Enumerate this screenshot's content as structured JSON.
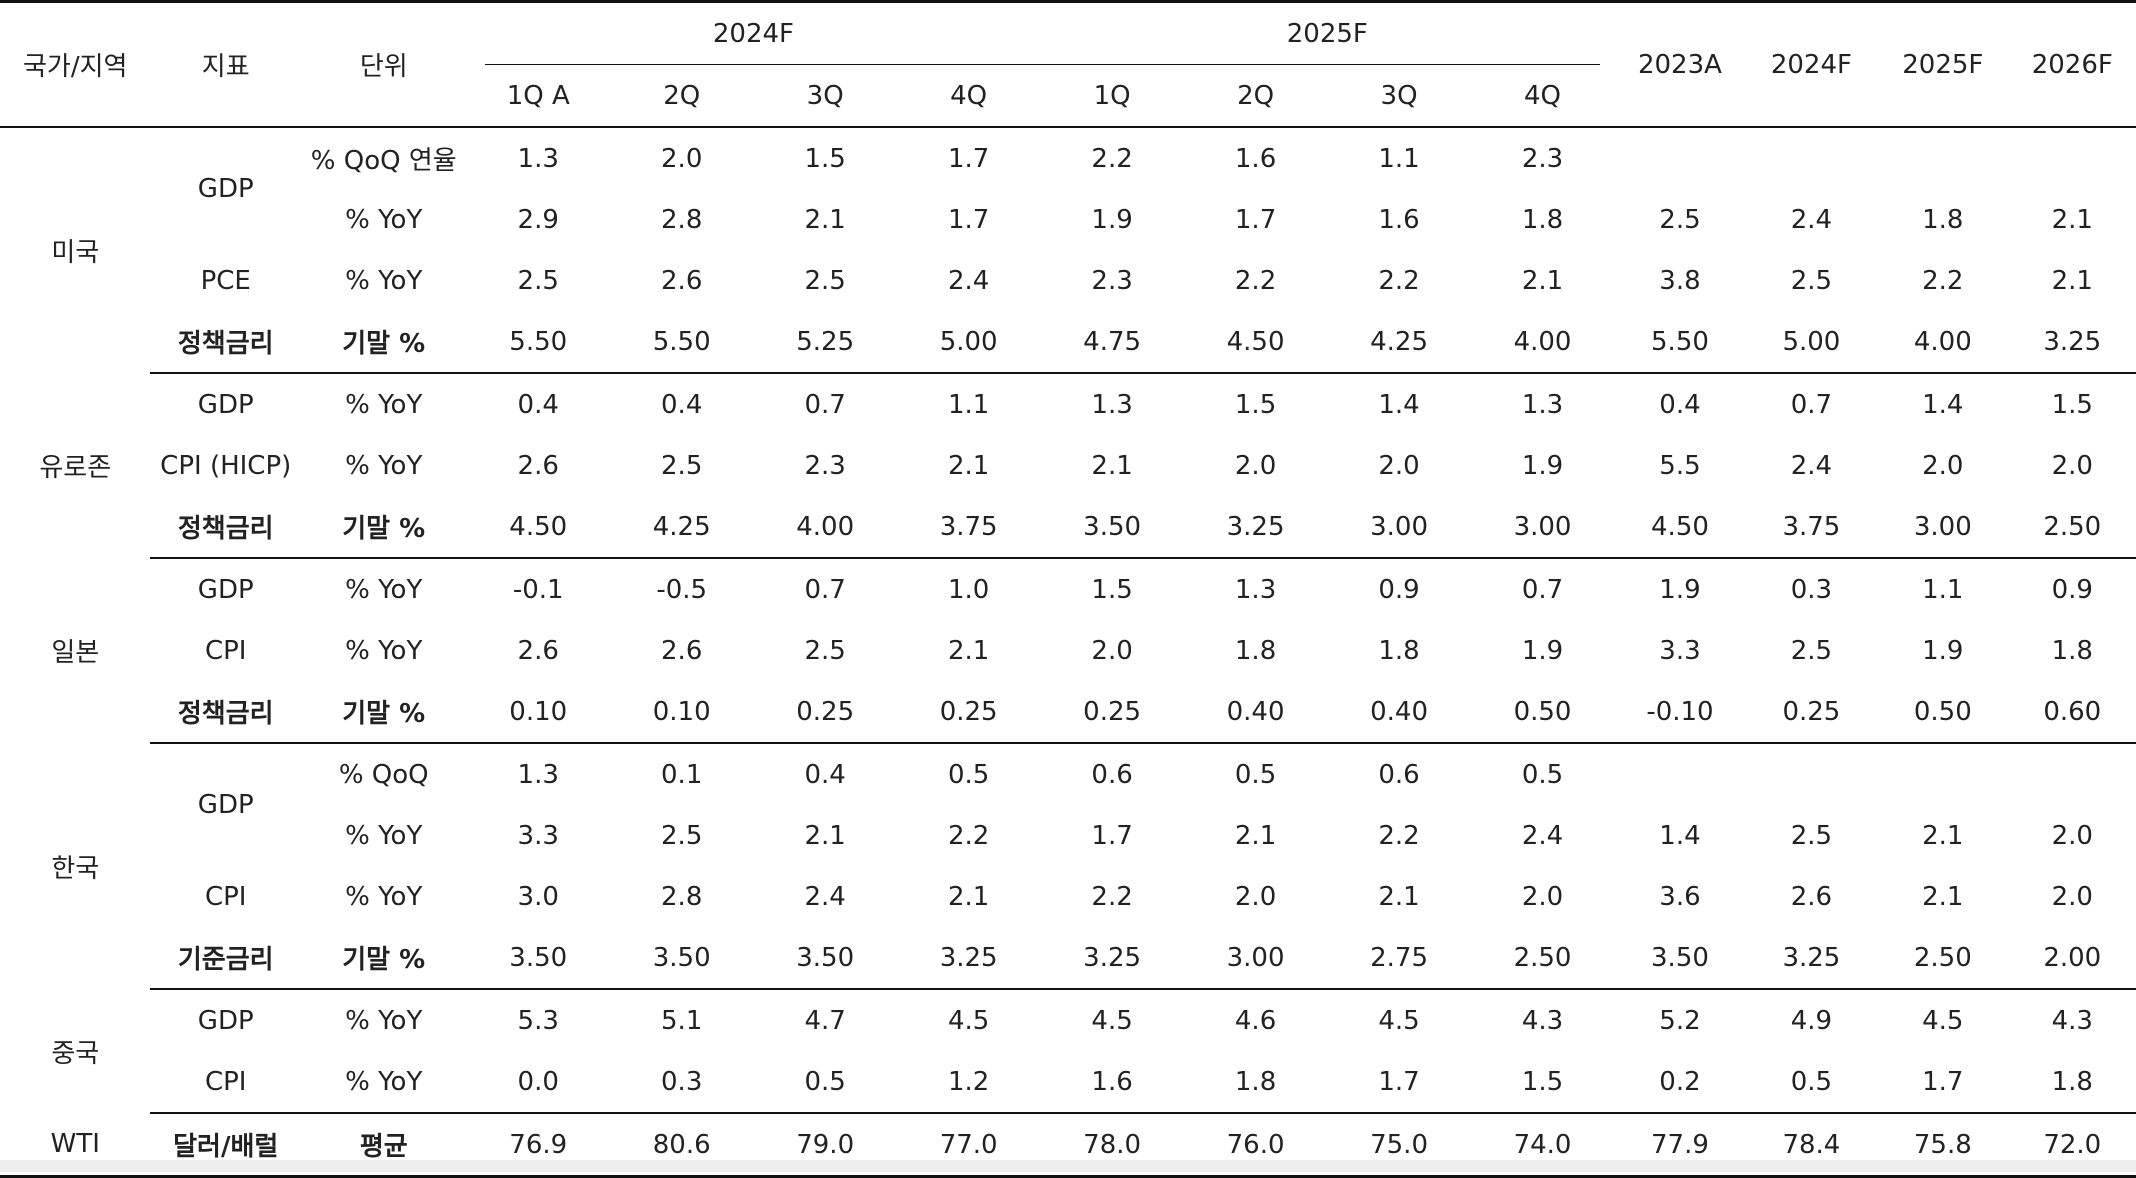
{
  "header": {
    "country": "국가/지역",
    "indicator": "지표",
    "unit": "단위",
    "year_2024f": "2024F",
    "year_2025f": "2025F",
    "quarters_2024": [
      "1Q A",
      "2Q",
      "3Q",
      "4Q"
    ],
    "quarters_2025": [
      "1Q",
      "2Q",
      "3Q",
      "4Q"
    ],
    "annual": [
      "2023A",
      "2024F",
      "2025F",
      "2026F"
    ]
  },
  "rows": [
    {
      "country": "미국",
      "indicator": "GDP",
      "unit": "% QoQ 연율",
      "q": [
        "1.3",
        "2.0",
        "1.5",
        "1.7",
        "2.2",
        "1.6",
        "1.1",
        "2.3"
      ],
      "a": [
        "",
        "",
        "",
        ""
      ],
      "bold": false
    },
    {
      "country": "",
      "indicator": "",
      "unit": "% YoY",
      "q": [
        "2.9",
        "2.8",
        "2.1",
        "1.7",
        "1.9",
        "1.7",
        "1.6",
        "1.8"
      ],
      "a": [
        "2.5",
        "2.4",
        "1.8",
        "2.1"
      ],
      "bold": false
    },
    {
      "country": "",
      "indicator": "PCE",
      "unit": "% YoY",
      "q": [
        "2.5",
        "2.6",
        "2.5",
        "2.4",
        "2.3",
        "2.2",
        "2.2",
        "2.1"
      ],
      "a": [
        "3.8",
        "2.5",
        "2.2",
        "2.1"
      ],
      "bold": false
    },
    {
      "country": "",
      "indicator": "정책금리",
      "unit": "기말 %",
      "q": [
        "5.50",
        "5.50",
        "5.25",
        "5.00",
        "4.75",
        "4.50",
        "4.25",
        "4.00"
      ],
      "a": [
        "5.50",
        "5.00",
        "4.00",
        "3.25"
      ],
      "bold": true
    },
    {
      "country": "유로존",
      "indicator": "GDP",
      "unit": "% YoY",
      "q": [
        "0.4",
        "0.4",
        "0.7",
        "1.1",
        "1.3",
        "1.5",
        "1.4",
        "1.3"
      ],
      "a": [
        "0.4",
        "0.7",
        "1.4",
        "1.5"
      ],
      "bold": false
    },
    {
      "country": "",
      "indicator": "CPI (HICP)",
      "unit": "% YoY",
      "q": [
        "2.6",
        "2.5",
        "2.3",
        "2.1",
        "2.1",
        "2.0",
        "2.0",
        "1.9"
      ],
      "a": [
        "5.5",
        "2.4",
        "2.0",
        "2.0"
      ],
      "bold": false
    },
    {
      "country": "",
      "indicator": "정책금리",
      "unit": "기말 %",
      "q": [
        "4.50",
        "4.25",
        "4.00",
        "3.75",
        "3.50",
        "3.25",
        "3.00",
        "3.00"
      ],
      "a": [
        "4.50",
        "3.75",
        "3.00",
        "2.50"
      ],
      "bold": true
    },
    {
      "country": "일본",
      "indicator": "GDP",
      "unit": "% YoY",
      "q": [
        "-0.1",
        "-0.5",
        "0.7",
        "1.0",
        "1.5",
        "1.3",
        "0.9",
        "0.7"
      ],
      "a": [
        "1.9",
        "0.3",
        "1.1",
        "0.9"
      ],
      "bold": false
    },
    {
      "country": "",
      "indicator": "CPI",
      "unit": "% YoY",
      "q": [
        "2.6",
        "2.6",
        "2.5",
        "2.1",
        "2.0",
        "1.8",
        "1.8",
        "1.9"
      ],
      "a": [
        "3.3",
        "2.5",
        "1.9",
        "1.8"
      ],
      "bold": false
    },
    {
      "country": "",
      "indicator": "정책금리",
      "unit": "기말 %",
      "q": [
        "0.10",
        "0.10",
        "0.25",
        "0.25",
        "0.25",
        "0.40",
        "0.40",
        "0.50"
      ],
      "a": [
        "-0.10",
        "0.25",
        "0.50",
        "0.60"
      ],
      "bold": true
    },
    {
      "country": "한국",
      "indicator": "GDP",
      "unit": "% QoQ",
      "q": [
        "1.3",
        "0.1",
        "0.4",
        "0.5",
        "0.6",
        "0.5",
        "0.6",
        "0.5"
      ],
      "a": [
        "",
        "",
        "",
        ""
      ],
      "bold": false
    },
    {
      "country": "",
      "indicator": "",
      "unit": "% YoY",
      "q": [
        "3.3",
        "2.5",
        "2.1",
        "2.2",
        "1.7",
        "2.1",
        "2.2",
        "2.4"
      ],
      "a": [
        "1.4",
        "2.5",
        "2.1",
        "2.0"
      ],
      "bold": false
    },
    {
      "country": "",
      "indicator": "CPI",
      "unit": "% YoY",
      "q": [
        "3.0",
        "2.8",
        "2.4",
        "2.1",
        "2.2",
        "2.0",
        "2.1",
        "2.0"
      ],
      "a": [
        "3.6",
        "2.6",
        "2.1",
        "2.0"
      ],
      "bold": false
    },
    {
      "country": "",
      "indicator": "기준금리",
      "unit": "기말 %",
      "q": [
        "3.50",
        "3.50",
        "3.50",
        "3.25",
        "3.25",
        "3.00",
        "2.75",
        "2.50"
      ],
      "a": [
        "3.50",
        "3.25",
        "2.50",
        "2.00"
      ],
      "bold": true
    },
    {
      "country": "중국",
      "indicator": "GDP",
      "unit": "% YoY",
      "q": [
        "5.3",
        "5.1",
        "4.7",
        "4.5",
        "4.5",
        "4.6",
        "4.5",
        "4.3"
      ],
      "a": [
        "5.2",
        "4.9",
        "4.5",
        "4.3"
      ],
      "bold": false
    },
    {
      "country": "",
      "indicator": "CPI",
      "unit": "% YoY",
      "q": [
        "0.0",
        "0.3",
        "0.5",
        "1.2",
        "1.6",
        "1.8",
        "1.7",
        "1.5"
      ],
      "a": [
        "0.2",
        "0.5",
        "1.7",
        "1.8"
      ],
      "bold": false
    },
    {
      "country": "WTI",
      "indicator": "달러/배럴",
      "unit": "평균",
      "q": [
        "76.9",
        "80.6",
        "79.0",
        "77.0",
        "78.0",
        "76.0",
        "75.0",
        "74.0"
      ],
      "a": [
        "77.9",
        "78.4",
        "75.8",
        "72.0"
      ],
      "bold": true
    }
  ]
}
